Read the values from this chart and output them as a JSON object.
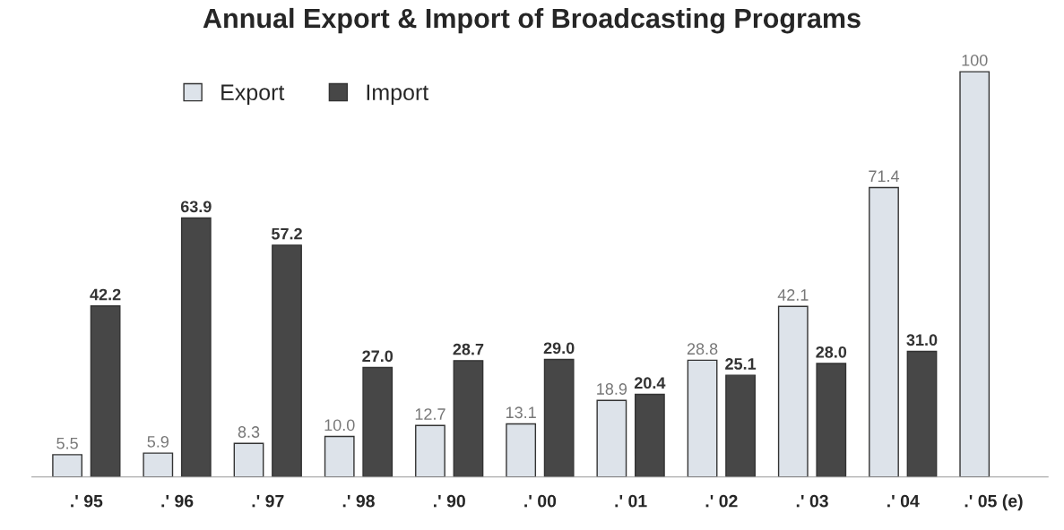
{
  "chart_data": {
    "type": "bar",
    "title": "Annual Export & Import of Broadcasting Programs",
    "categories": [
      ".' 95",
      ".' 96",
      ".' 97",
      ".' 98",
      ".' 90",
      ".' 00",
      ".' 01",
      ".' 02",
      ".' 03",
      ".' 04",
      ".' 05 (e)"
    ],
    "series": [
      {
        "name": "Export",
        "color": "#dde3ea",
        "values": [
          5.5,
          5.9,
          8.3,
          10,
          12.7,
          13.1,
          18.9,
          28.8,
          42.1,
          71.4,
          100
        ],
        "value_labels": [
          "5.5",
          "5.9",
          "8.3",
          "10.0",
          "12.7",
          "13.1",
          "18.9",
          "28.8",
          "42.1",
          "71.4",
          "100"
        ]
      },
      {
        "name": "Import",
        "color": "#474747",
        "values": [
          42.2,
          63.9,
          57.2,
          27,
          28.7,
          29,
          20.4,
          25.1,
          28,
          31,
          null
        ],
        "value_labels": [
          "42.2",
          "63.9",
          "57.2",
          "27.0",
          "28.7",
          "29.0",
          "20.4",
          "25.1",
          "28.0",
          "31.0",
          null
        ]
      }
    ],
    "legend": "top",
    "grid": false
  }
}
